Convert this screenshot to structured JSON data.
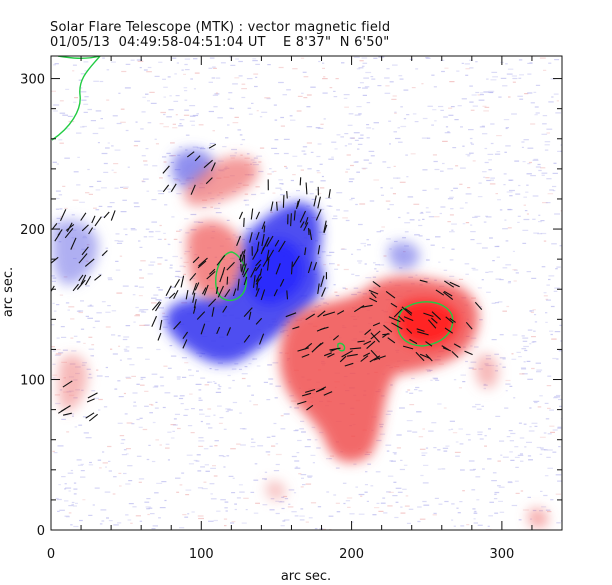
{
  "header": {
    "title": "Solar Flare Telescope (MTK) : vector magnetic field",
    "subtitle": "01/05/13  04:49:58-04:51:04 UT    E 8'37\"  N 6'50\""
  },
  "colors": {
    "positive_polarity": "#f04040",
    "negative_polarity": "#3a3af0",
    "contour": "#22cc44",
    "vector": "#111111",
    "noise": "#b8b8ee"
  },
  "chart_data": {
    "type": "image",
    "xlabel": "arc sec.",
    "ylabel": "arc sec.",
    "xlim": [
      0,
      340
    ],
    "ylim": [
      0,
      315
    ],
    "x_ticks": [
      0,
      100,
      200,
      300
    ],
    "y_ticks": [
      0,
      100,
      200,
      300
    ]
  }
}
